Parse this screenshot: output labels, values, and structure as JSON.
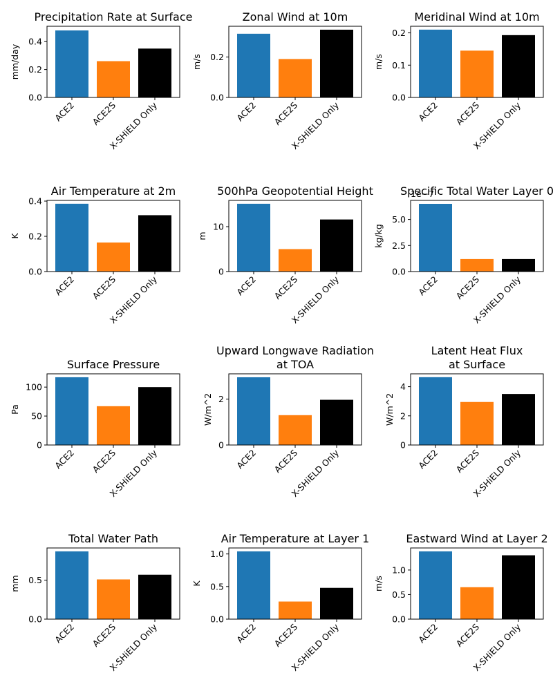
{
  "figure": {
    "description_free": true
  },
  "series_colors": {
    "ACE2": "#1f77b4",
    "ACE2S": "#ff7f0e",
    "X-SHiELD Only": "#000000"
  },
  "chart_data": [
    {
      "type": "bar",
      "title": [
        "Precipitation Rate at Surface"
      ],
      "ylabel": "mm/day",
      "categories": [
        "ACE2",
        "ACE2S",
        "X-SHiELD Only"
      ],
      "values": [
        0.48,
        0.26,
        0.35
      ],
      "ylim": [
        0,
        0.51
      ],
      "yticks": [
        0.0,
        0.2,
        0.4
      ],
      "ytick_labels": [
        "0.0",
        "0.2",
        "0.4"
      ],
      "offset_label": ""
    },
    {
      "type": "bar",
      "title": [
        "Zonal Wind at 10m"
      ],
      "ylabel": "m/s",
      "categories": [
        "ACE2",
        "ACE2S",
        "X-SHiELD Only"
      ],
      "values": [
        0.315,
        0.19,
        0.335
      ],
      "ylim": [
        0,
        0.352
      ],
      "yticks": [
        0.0,
        0.2
      ],
      "ytick_labels": [
        "0.0",
        "0.2"
      ],
      "offset_label": ""
    },
    {
      "type": "bar",
      "title": [
        "Meridinal Wind at 10m"
      ],
      "ylabel": "m/s",
      "categories": [
        "ACE2",
        "ACE2S",
        "X-SHiELD Only"
      ],
      "values": [
        0.21,
        0.145,
        0.193
      ],
      "ylim": [
        0,
        0.2205
      ],
      "yticks": [
        0.0,
        0.1,
        0.2
      ],
      "ytick_labels": [
        "0.0",
        "0.1",
        "0.2"
      ],
      "offset_label": ""
    },
    {
      "type": "bar",
      "title": [
        "Air Temperature at 2m"
      ],
      "ylabel": "K",
      "categories": [
        "ACE2",
        "ACE2S",
        "X-SHiELD Only"
      ],
      "values": [
        0.385,
        0.165,
        0.32
      ],
      "ylim": [
        0,
        0.404
      ],
      "yticks": [
        0.0,
        0.2,
        0.4
      ],
      "ytick_labels": [
        "0.0",
        "0.2",
        "0.4"
      ],
      "offset_label": ""
    },
    {
      "type": "bar",
      "title": [
        "500hPa Geopotential Height"
      ],
      "ylabel": "m",
      "categories": [
        "ACE2",
        "ACE2S",
        "X-SHiELD Only"
      ],
      "values": [
        15.1,
        5.0,
        11.6
      ],
      "ylim": [
        0,
        15.85
      ],
      "yticks": [
        0,
        10
      ],
      "ytick_labels": [
        "0",
        "10"
      ],
      "offset_label": ""
    },
    {
      "type": "bar",
      "title": [
        "Specific Total Water Layer 0"
      ],
      "ylabel": "kg/kg",
      "categories": [
        "ACE2",
        "ACE2S",
        "X-SHiELD Only"
      ],
      "values": [
        6.5e-07,
        1.2e-07,
        1.2e-07
      ],
      "ylim": [
        0,
        6.83e-07
      ],
      "yticks": [
        0,
        2.5e-07,
        5e-07
      ],
      "ytick_labels": [
        "0.0",
        "2.5",
        "5.0"
      ],
      "offset_label": "1e−7"
    },
    {
      "type": "bar",
      "title": [
        "Surface Pressure"
      ],
      "ylabel": "Pa",
      "categories": [
        "ACE2",
        "ACE2S",
        "X-SHiELD Only"
      ],
      "values": [
        117,
        67,
        100
      ],
      "ylim": [
        0,
        122.9
      ],
      "yticks": [
        0,
        50,
        100
      ],
      "ytick_labels": [
        "0",
        "50",
        "100"
      ],
      "offset_label": ""
    },
    {
      "type": "bar",
      "title": [
        "Upward Longwave Radiation",
        "at TOA"
      ],
      "ylabel": "W/m^2",
      "categories": [
        "ACE2",
        "ACE2S",
        "X-SHiELD Only"
      ],
      "values": [
        2.95,
        1.3,
        1.97
      ],
      "ylim": [
        0,
        3.1
      ],
      "yticks": [
        0,
        2
      ],
      "ytick_labels": [
        "0",
        "2"
      ],
      "offset_label": ""
    },
    {
      "type": "bar",
      "title": [
        "Latent Heat Flux",
        "at Surface"
      ],
      "ylabel": "W/m^2",
      "categories": [
        "ACE2",
        "ACE2S",
        "X-SHiELD Only"
      ],
      "values": [
        4.65,
        2.95,
        3.5
      ],
      "ylim": [
        0,
        4.88
      ],
      "yticks": [
        0,
        2,
        4
      ],
      "ytick_labels": [
        "0",
        "2",
        "4"
      ],
      "offset_label": ""
    },
    {
      "type": "bar",
      "title": [
        "Total Water Path"
      ],
      "ylabel": "mm",
      "categories": [
        "ACE2",
        "ACE2S",
        "X-SHiELD Only"
      ],
      "values": [
        0.87,
        0.51,
        0.57
      ],
      "ylim": [
        0,
        0.9135
      ],
      "yticks": [
        0.0,
        0.5
      ],
      "ytick_labels": [
        "0.0",
        "0.5"
      ],
      "offset_label": ""
    },
    {
      "type": "bar",
      "title": [
        "Air Temperature at Layer 1"
      ],
      "ylabel": "K",
      "categories": [
        "ACE2",
        "ACE2S",
        "X-SHiELD Only"
      ],
      "values": [
        1.04,
        0.27,
        0.48
      ],
      "ylim": [
        0,
        1.092
      ],
      "yticks": [
        0.0,
        0.5,
        1.0
      ],
      "ytick_labels": [
        "0.0",
        "0.5",
        "1.0"
      ],
      "offset_label": ""
    },
    {
      "type": "bar",
      "title": [
        "Eastward Wind at Layer 2"
      ],
      "ylabel": "m/s",
      "categories": [
        "ACE2",
        "ACE2S",
        "X-SHiELD Only"
      ],
      "values": [
        1.38,
        0.65,
        1.3
      ],
      "ylim": [
        0,
        1.449
      ],
      "yticks": [
        0.0,
        0.5,
        1.0
      ],
      "ytick_labels": [
        "0.0",
        "0.5",
        "1.0"
      ],
      "offset_label": ""
    }
  ]
}
